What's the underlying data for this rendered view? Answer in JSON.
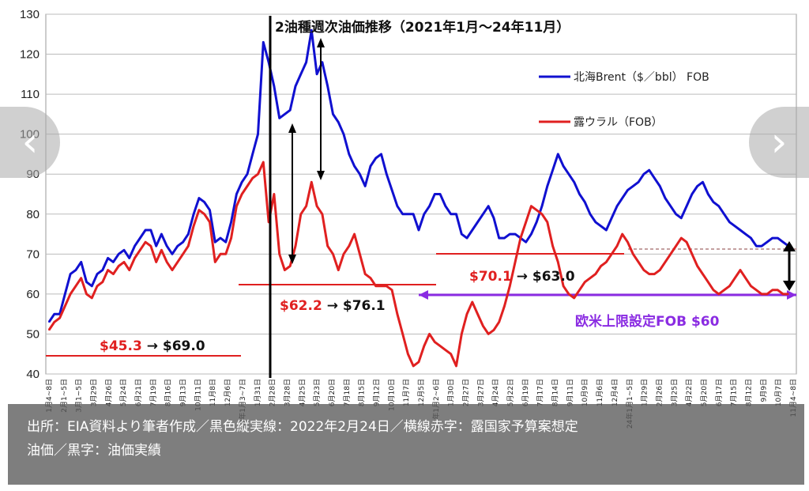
{
  "chart_data": {
    "type": "line",
    "title": "2油種週次油価推移（2021年1月～24年11月）",
    "ylim": [
      40,
      130
    ],
    "yticks": [
      40,
      50,
      60,
      70,
      80,
      90,
      100,
      110,
      120,
      130
    ],
    "grid": true,
    "legend_position": "top-right",
    "x_labels": [
      "1月4~8日",
      "2月1~5日",
      "3月1~5日",
      "3月29日",
      "4月26日",
      "5月24日",
      "6月21日",
      "7月19日",
      "8月16日",
      "9月13日",
      "10月11日",
      "11月8日",
      "12月6日",
      "22年1月3~7日",
      "1月31日",
      "2月28日",
      "3月28日",
      "4月25日",
      "5月23日",
      "6月20日",
      "7月18日",
      "8月15日",
      "9月12日",
      "10月10日",
      "11月7日",
      "12月5日",
      "23年1月2~6日",
      "1月30日",
      "2月27日",
      "3月27日",
      "4月24日",
      "5月22日",
      "6月19日",
      "7月17日",
      "8月14日",
      "9月11日",
      "10月9日",
      "11月6日",
      "12月4日",
      "24年1月1~5日",
      "1月29日",
      "2月26日",
      "3月25日",
      "4月22日",
      "5月20日",
      "6月17日",
      "7月15日",
      "8月12日",
      "9月9日",
      "10月7日",
      "11月4~8日"
    ],
    "series": [
      {
        "name": "北海Brent（$／bbl） FOB",
        "color": "#1010d0",
        "values": [
          53,
          55,
          55,
          60,
          65,
          66,
          68,
          63,
          62,
          65,
          66,
          69,
          68,
          70,
          71,
          69,
          72,
          74,
          76,
          76,
          72,
          75,
          72,
          70,
          72,
          73,
          75,
          80,
          84,
          83,
          81,
          73,
          74,
          73,
          78,
          85,
          88,
          90,
          95,
          100,
          123,
          118,
          112,
          104,
          105,
          106,
          112,
          115,
          118,
          126,
          115,
          118,
          112,
          105,
          103,
          100,
          95,
          92,
          90,
          87,
          92,
          94,
          95,
          90,
          86,
          82,
          80,
          80,
          80,
          76,
          80,
          82,
          85,
          85,
          82,
          80,
          80,
          75,
          74,
          76,
          78,
          80,
          82,
          79,
          74,
          74,
          75,
          75,
          74,
          73,
          75,
          78,
          82,
          87,
          91,
          95,
          92,
          90,
          88,
          85,
          83,
          80,
          78,
          77,
          76,
          79,
          82,
          84,
          86,
          87,
          88,
          90,
          91,
          89,
          87,
          84,
          82,
          80,
          79,
          82,
          85,
          87,
          88,
          85,
          83,
          82,
          80,
          78,
          77,
          76,
          75,
          74,
          72,
          72,
          73,
          74,
          74,
          73,
          72
        ]
      },
      {
        "name": "露ウラル（FOB）",
        "color": "#e02020",
        "values": [
          51,
          53,
          54,
          57,
          60,
          62,
          64,
          60,
          59,
          62,
          63,
          66,
          65,
          67,
          68,
          66,
          69,
          71,
          73,
          72,
          68,
          71,
          68,
          66,
          68,
          70,
          72,
          77,
          81,
          80,
          78,
          68,
          70,
          70,
          74,
          82,
          85,
          87,
          89,
          90,
          93,
          78,
          85,
          70,
          66,
          67,
          72,
          80,
          82,
          88,
          82,
          80,
          72,
          70,
          66,
          70,
          72,
          75,
          70,
          65,
          64,
          62,
          62,
          62,
          61,
          55,
          50,
          45,
          42,
          43,
          47,
          50,
          48,
          47,
          46,
          45,
          42,
          50,
          55,
          58,
          55,
          52,
          50,
          51,
          53,
          57,
          62,
          68,
          74,
          78,
          82,
          81,
          80,
          78,
          72,
          68,
          62,
          60,
          59,
          61,
          63,
          64,
          65,
          67,
          68,
          70,
          72,
          75,
          73,
          70,
          68,
          66,
          65,
          65,
          66,
          68,
          70,
          72,
          74,
          73,
          70,
          67,
          65,
          63,
          61,
          60,
          61,
          62,
          64,
          66,
          64,
          62,
          61,
          60,
          60,
          61,
          61,
          60,
          60
        ]
      }
    ],
    "event_marker_label": "2022年2月24日",
    "annotations": [
      {
        "text": "$45.3 → $69.0",
        "color_start": "#e02020",
        "color_end": "#111111"
      },
      {
        "text": "$62.2 → $76.1",
        "color_start": "#e02020",
        "color_end": "#111111"
      },
      {
        "text": "$70.1 → $63.0",
        "color_start": "#e02020",
        "color_end": "#111111"
      },
      {
        "text": "欧米上限設定FOB $60",
        "color": "#8a2be2"
      }
    ]
  },
  "caption": {
    "line1": "出所：EIA資料より筆者作成／黒色縦実線：2022年2月24日／横線赤字：露国家予算案想定",
    "line2": "油価／黒字：油価実績"
  },
  "nav": {
    "prev": "‹",
    "next": "›"
  }
}
